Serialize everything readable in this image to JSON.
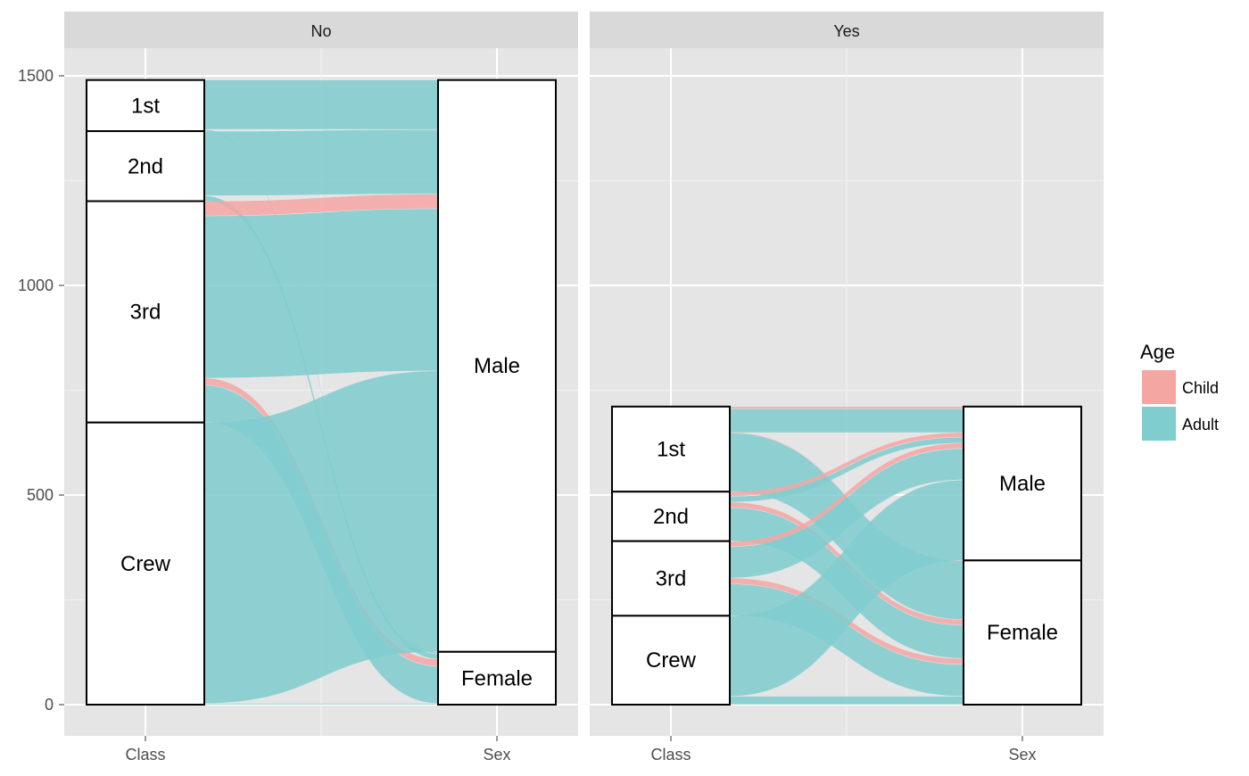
{
  "chart_data": {
    "type": "alluvial",
    "axes": [
      "Class",
      "Sex"
    ],
    "facet_variable": "Survived",
    "facets": [
      "No",
      "Yes"
    ],
    "class_order": [
      "1st",
      "2nd",
      "3rd",
      "Crew"
    ],
    "sex_order": [
      "Male",
      "Female"
    ],
    "y_ticks": [
      0,
      500,
      1000,
      1500
    ],
    "ylim": [
      0,
      1500
    ],
    "legend": {
      "title": "Age",
      "items": [
        {
          "label": "Child",
          "color": "#F4A6A3"
        },
        {
          "label": "Adult",
          "color": "#7FCDCF"
        }
      ],
      "position": "right"
    },
    "flows": {
      "No": [
        {
          "class": "1st",
          "sex": "Male",
          "age": "Child",
          "value": 0
        },
        {
          "class": "1st",
          "sex": "Male",
          "age": "Adult",
          "value": 118
        },
        {
          "class": "1st",
          "sex": "Female",
          "age": "Child",
          "value": 0
        },
        {
          "class": "1st",
          "sex": "Female",
          "age": "Adult",
          "value": 4
        },
        {
          "class": "2nd",
          "sex": "Male",
          "age": "Child",
          "value": 0
        },
        {
          "class": "2nd",
          "sex": "Male",
          "age": "Adult",
          "value": 154
        },
        {
          "class": "2nd",
          "sex": "Female",
          "age": "Child",
          "value": 0
        },
        {
          "class": "2nd",
          "sex": "Female",
          "age": "Adult",
          "value": 13
        },
        {
          "class": "3rd",
          "sex": "Male",
          "age": "Child",
          "value": 35
        },
        {
          "class": "3rd",
          "sex": "Male",
          "age": "Adult",
          "value": 387
        },
        {
          "class": "3rd",
          "sex": "Female",
          "age": "Child",
          "value": 17
        },
        {
          "class": "3rd",
          "sex": "Female",
          "age": "Adult",
          "value": 89
        },
        {
          "class": "Crew",
          "sex": "Male",
          "age": "Child",
          "value": 0
        },
        {
          "class": "Crew",
          "sex": "Male",
          "age": "Adult",
          "value": 670
        },
        {
          "class": "Crew",
          "sex": "Female",
          "age": "Child",
          "value": 0
        },
        {
          "class": "Crew",
          "sex": "Female",
          "age": "Adult",
          "value": 3
        }
      ],
      "Yes": [
        {
          "class": "1st",
          "sex": "Male",
          "age": "Child",
          "value": 5
        },
        {
          "class": "1st",
          "sex": "Male",
          "age": "Adult",
          "value": 57
        },
        {
          "class": "1st",
          "sex": "Female",
          "age": "Child",
          "value": 1
        },
        {
          "class": "1st",
          "sex": "Female",
          "age": "Adult",
          "value": 140
        },
        {
          "class": "2nd",
          "sex": "Male",
          "age": "Child",
          "value": 11
        },
        {
          "class": "2nd",
          "sex": "Male",
          "age": "Adult",
          "value": 14
        },
        {
          "class": "2nd",
          "sex": "Female",
          "age": "Child",
          "value": 13
        },
        {
          "class": "2nd",
          "sex": "Female",
          "age": "Adult",
          "value": 80
        },
        {
          "class": "3rd",
          "sex": "Male",
          "age": "Child",
          "value": 13
        },
        {
          "class": "3rd",
          "sex": "Male",
          "age": "Adult",
          "value": 75
        },
        {
          "class": "3rd",
          "sex": "Female",
          "age": "Child",
          "value": 14
        },
        {
          "class": "3rd",
          "sex": "Female",
          "age": "Adult",
          "value": 76
        },
        {
          "class": "Crew",
          "sex": "Male",
          "age": "Child",
          "value": 0
        },
        {
          "class": "Crew",
          "sex": "Male",
          "age": "Adult",
          "value": 192
        },
        {
          "class": "Crew",
          "sex": "Female",
          "age": "Child",
          "value": 0
        },
        {
          "class": "Crew",
          "sex": "Female",
          "age": "Adult",
          "value": 20
        }
      ]
    }
  }
}
